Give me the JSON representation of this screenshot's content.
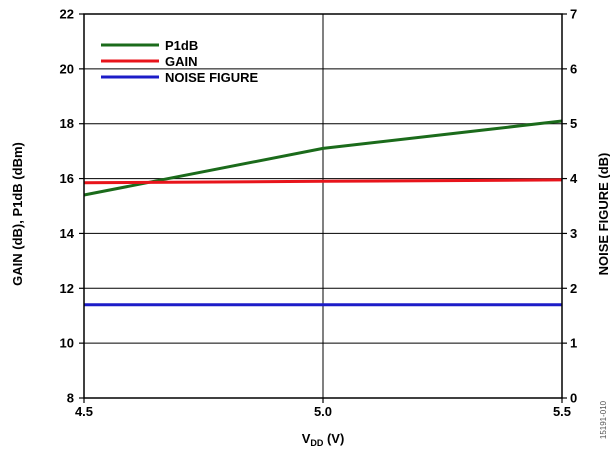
{
  "chart_data": {
    "type": "line",
    "title": "",
    "xlabel": "V",
    "xlabel_sub": "DD",
    "xlabel_unit": " (V)",
    "ylabel": "GAIN (dB), P1dB (dBm)",
    "y2label": "NOISE FIGURE (dB)",
    "xlim": [
      4.5,
      5.5
    ],
    "ylim": [
      8,
      22
    ],
    "y2lim": [
      0,
      7
    ],
    "x_ticks": [
      "4.5",
      "5.0",
      "5.5"
    ],
    "x_tick_values": [
      4.5,
      5.0,
      5.5
    ],
    "y_ticks": [
      8,
      10,
      12,
      14,
      16,
      18,
      20,
      22
    ],
    "y2_ticks": [
      0,
      1,
      2,
      3,
      4,
      5,
      6,
      7
    ],
    "grid": true,
    "legend_position": "top-left",
    "series": [
      {
        "name": "P1dB",
        "axis": "left",
        "color": "#1b6b1b",
        "x": [
          4.5,
          5.0,
          5.5
        ],
        "y": [
          15.4,
          17.1,
          18.1
        ]
      },
      {
        "name": "GAIN",
        "axis": "left",
        "color": "#e8141b",
        "x": [
          4.5,
          5.0,
          5.5
        ],
        "y": [
          15.85,
          15.9,
          15.95
        ]
      },
      {
        "name": "NOISE FIGURE",
        "axis": "right",
        "color": "#1c1cc8",
        "x": [
          4.5,
          5.0,
          5.5
        ],
        "y": [
          1.7,
          1.7,
          1.7
        ]
      }
    ],
    "watermark": "15191-010"
  }
}
